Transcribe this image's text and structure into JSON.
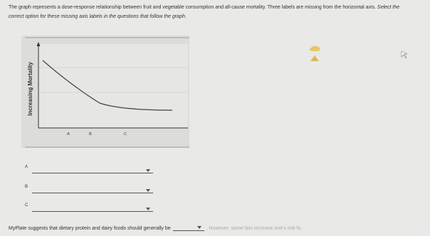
{
  "intro": {
    "text1": "The graph represents a dose-response relationship between fruit and vegetable consumption and all-cause mortality. Three labels are missing from the horizontal axis.",
    "text2": "Select the correct option for these missing axis labels in the questions that follow the graph."
  },
  "graph": {
    "y_label": "Increasing Mortality",
    "x_labels": [
      "A",
      "B",
      "C"
    ]
  },
  "questions": [
    {
      "label": "A"
    },
    {
      "label": "B"
    },
    {
      "label": "C"
    }
  ],
  "final_question": {
    "before": "MyPlate suggests that dietary protein and dairy foods should generally be",
    "after": ". However, some fats increase one's risk fo"
  }
}
